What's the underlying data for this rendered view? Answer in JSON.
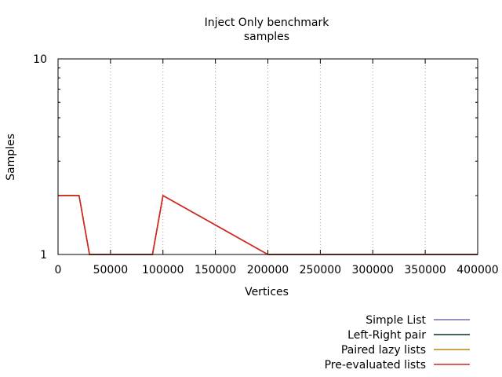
{
  "chart_data": {
    "type": "line",
    "title": "Inject Only benchmark",
    "subtitle": "samples",
    "xlabel": "Vertices",
    "ylabel": "Samples",
    "y_scale": "log",
    "xlim": [
      0,
      400000
    ],
    "ylim": [
      1,
      10
    ],
    "xticks": [
      0,
      50000,
      100000,
      150000,
      200000,
      250000,
      300000,
      350000,
      400000
    ],
    "xtick_labels": [
      "0",
      "50000",
      "100000",
      "150000",
      "200000",
      "250000",
      "300000",
      "350000",
      "400000"
    ],
    "yticks": [
      1,
      10
    ],
    "ytick_labels": [
      "1",
      "10"
    ],
    "grid": "vertical dotted lines at x ticks",
    "legend_position": "bottom-right, below plot",
    "series": [
      {
        "name": "Simple List",
        "color": "#7b68b0",
        "x": [
          0,
          20000,
          30000,
          90000,
          100000,
          200000,
          400000
        ],
        "y": [
          2,
          2,
          1,
          1,
          2,
          1,
          1
        ]
      },
      {
        "name": "Left-Right pair",
        "color": "#0a3030",
        "x": [
          0,
          20000,
          30000,
          90000,
          100000,
          200000,
          400000
        ],
        "y": [
          2,
          2,
          1,
          1,
          2,
          1,
          1
        ]
      },
      {
        "name": "Paired lazy lists",
        "color": "#b8860b",
        "x": [
          0,
          20000,
          30000,
          90000,
          100000,
          200000,
          400000
        ],
        "y": [
          2,
          2,
          1,
          1,
          2,
          1,
          1
        ]
      },
      {
        "name": "Pre-evaluated lists",
        "color": "#dd2222",
        "x": [
          0,
          20000,
          30000,
          90000,
          100000,
          200000,
          400000
        ],
        "y": [
          2,
          2,
          1,
          1,
          2,
          1,
          1
        ]
      }
    ]
  }
}
